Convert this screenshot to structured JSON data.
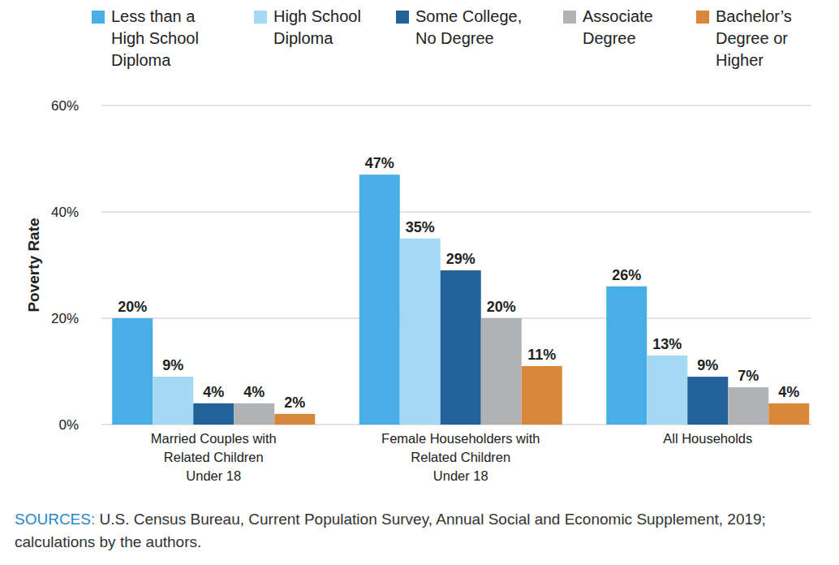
{
  "chart_data": {
    "type": "bar",
    "y_label": "Poverty Rate",
    "categories": [
      "Married Couples with\nRelated Children\nUnder 18",
      "Female Householders with\nRelated Children\nUnder 18",
      "All Households"
    ],
    "series": [
      {
        "name": "Less than a\nHigh School\nDiploma",
        "color": "#4aaee6",
        "values": [
          20,
          47,
          26
        ],
        "value_labels": [
          "20%",
          "47%",
          "26%"
        ]
      },
      {
        "name": "High School\nDiploma",
        "color": "#a4d8f3",
        "values": [
          9,
          35,
          13
        ],
        "value_labels": [
          "9%",
          "35%",
          "13%"
        ]
      },
      {
        "name": "Some College,\nNo Degree",
        "color": "#23619a",
        "values": [
          4,
          29,
          9
        ],
        "value_labels": [
          "4%",
          "29%",
          "9%"
        ]
      },
      {
        "name": "Associate\nDegree",
        "color": "#b1b2b4",
        "values": [
          4,
          20,
          7
        ],
        "value_labels": [
          "4%",
          "20%",
          "7%"
        ]
      },
      {
        "name": "Bachelor’s\nDegree or\nHigher",
        "color": "#d9873a",
        "values": [
          2,
          11,
          4
        ],
        "value_labels": [
          "2%",
          "11%",
          "4%"
        ]
      }
    ],
    "ylim": [
      0,
      60
    ],
    "yticks": [
      {
        "value": 0,
        "label": "0%"
      },
      {
        "value": 20,
        "label": "20%"
      },
      {
        "value": 40,
        "label": "40%"
      },
      {
        "value": 60,
        "label": "60%"
      }
    ],
    "grid": true,
    "legend": "top",
    "data_labels": true,
    "source_label": "SOURCES:",
    "source": "U.S. Census Bureau, Current Population Survey, Annual Social and Economic Supplement, 2019; calculations by the authors."
  }
}
